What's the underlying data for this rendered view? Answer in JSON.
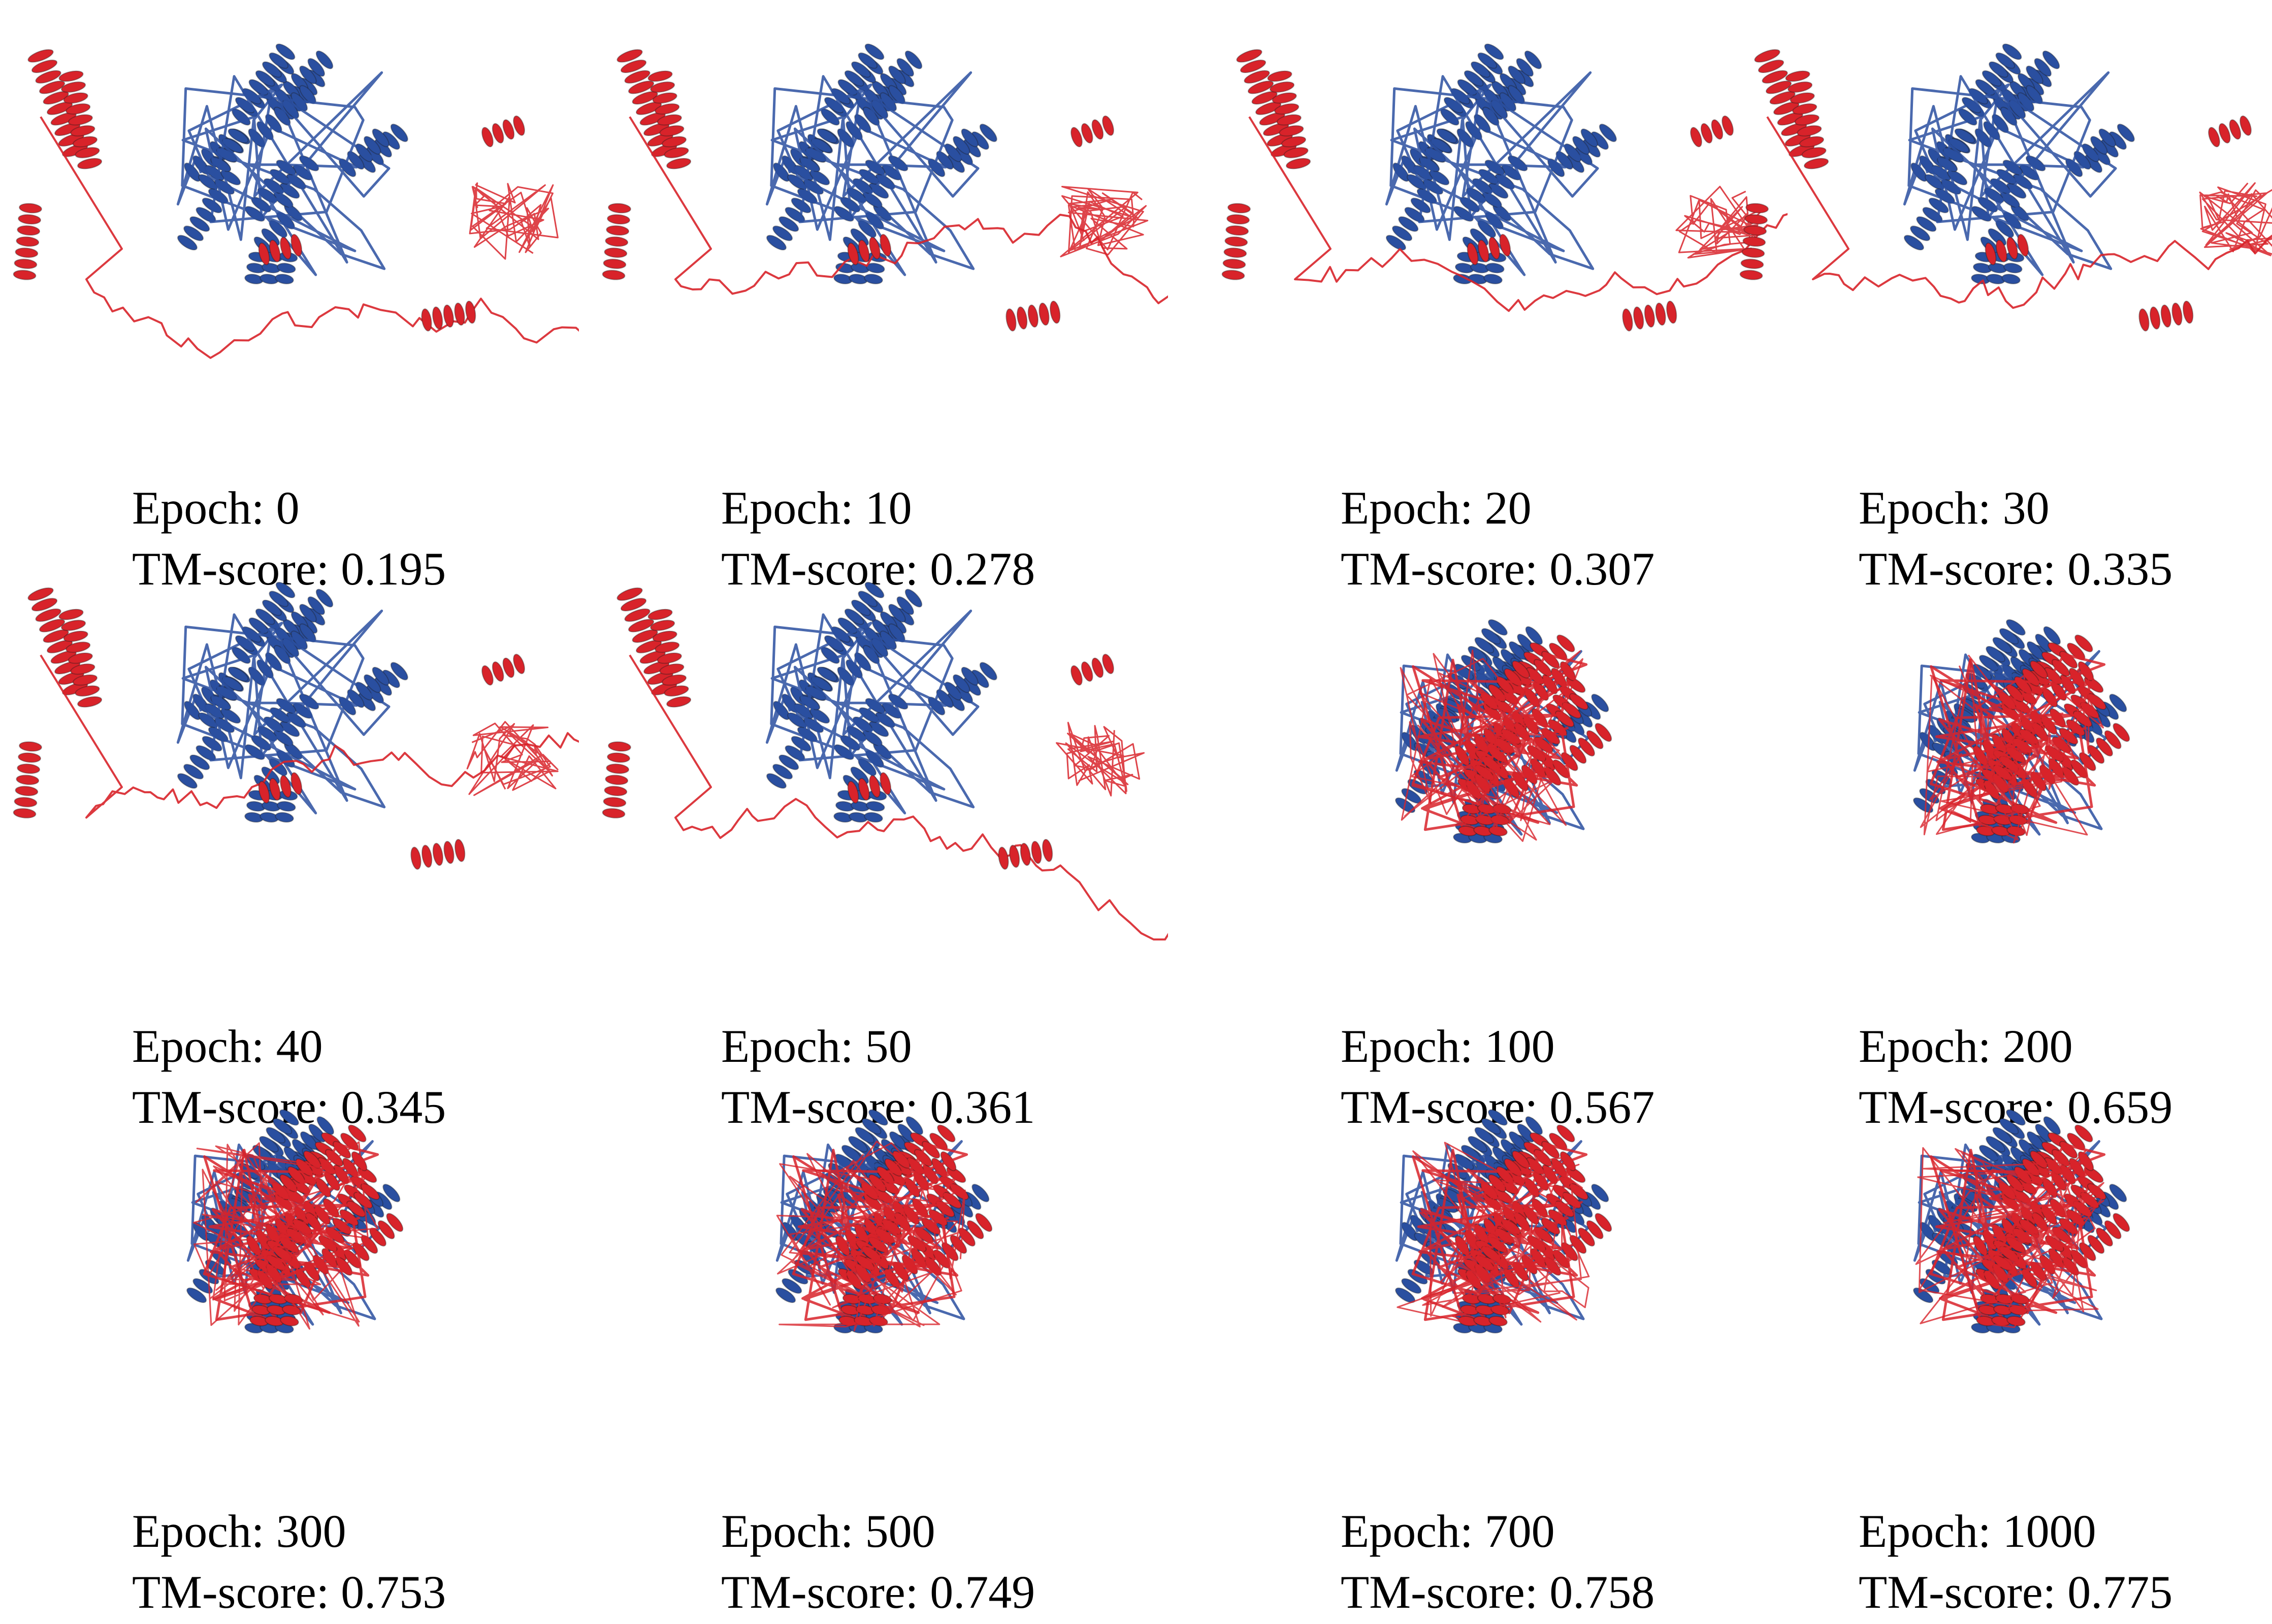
{
  "colors": {
    "predicted_structure": "#d8232a",
    "native_structure": "#2a4fa0",
    "background": "#ffffff"
  },
  "panels": [
    {
      "epoch": "Epoch: 0",
      "tm": "TM-score: 0.195",
      "convergence": 0.0
    },
    {
      "epoch": "Epoch: 10",
      "tm": "TM-score: 0.278",
      "convergence": 0.15
    },
    {
      "epoch": "Epoch: 20",
      "tm": "TM-score: 0.307",
      "convergence": 0.25
    },
    {
      "epoch": "Epoch: 30",
      "tm": "TM-score: 0.335",
      "convergence": 0.3
    },
    {
      "epoch": "Epoch: 40",
      "tm": "TM-score: 0.345",
      "convergence": 0.35
    },
    {
      "epoch": "Epoch: 50",
      "tm": "TM-score: 0.361",
      "convergence": 0.4
    },
    {
      "epoch": "Epoch: 100",
      "tm": "TM-score: 0.567",
      "convergence": 0.8
    },
    {
      "epoch": "Epoch: 200",
      "tm": "TM-score: 0.659",
      "convergence": 0.9
    },
    {
      "epoch": "Epoch: 300",
      "tm": "TM-score: 0.753",
      "convergence": 1.0
    },
    {
      "epoch": "Epoch: 500",
      "tm": "TM-score: 0.749",
      "convergence": 1.0
    },
    {
      "epoch": "Epoch: 700",
      "tm": "TM-score: 0.758",
      "convergence": 1.0
    },
    {
      "epoch": "Epoch: 1000",
      "tm": "TM-score: 0.775",
      "convergence": 1.0
    }
  ]
}
